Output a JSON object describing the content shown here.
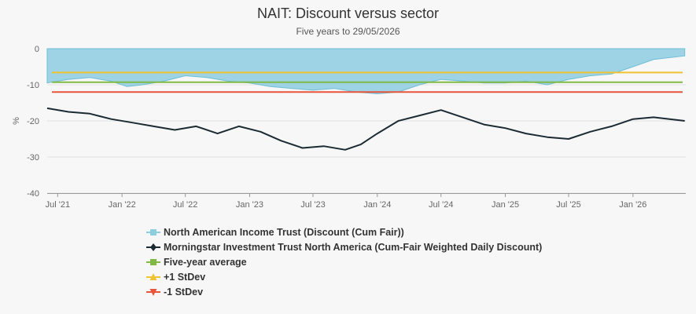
{
  "chart_data": {
    "type": "line",
    "title": "NAIT: Discount versus sector",
    "subtitle": "Five years to 29/05/2026",
    "ylabel": "%",
    "ylim": [
      -40,
      0
    ],
    "yticks": [
      0,
      -10,
      -20,
      -30,
      -40
    ],
    "xlim": [
      "2021-06-01",
      "2026-06-01"
    ],
    "xticks": [
      "Jul '21",
      "Jan '22",
      "Jul '22",
      "Jan '23",
      "Jul '23",
      "Jan '24",
      "Jul '24",
      "Jan '25",
      "Jul '25",
      "Jan '26"
    ],
    "xtick_dates": [
      "2021-07-01",
      "2022-01-01",
      "2022-07-01",
      "2023-01-01",
      "2023-07-01",
      "2024-01-01",
      "2024-07-01",
      "2025-01-01",
      "2025-07-01",
      "2026-01-01"
    ],
    "grid": true,
    "legend_position": "bottom",
    "series": [
      {
        "name": "North American Income Trust (Discount (Cum Fair))",
        "kind": "area",
        "color": "#8dcde0",
        "points": [
          [
            "2021-06-01",
            -9.5
          ],
          [
            "2021-08-01",
            -8.5
          ],
          [
            "2021-10-01",
            -8.0
          ],
          [
            "2021-12-01",
            -9.0
          ],
          [
            "2022-01-15",
            -10.5
          ],
          [
            "2022-03-01",
            -10.0
          ],
          [
            "2022-05-01",
            -9.0
          ],
          [
            "2022-07-01",
            -7.5
          ],
          [
            "2022-09-01",
            -8.0
          ],
          [
            "2022-11-01",
            -9.0
          ],
          [
            "2023-01-01",
            -9.5
          ],
          [
            "2023-03-01",
            -10.5
          ],
          [
            "2023-05-01",
            -11.0
          ],
          [
            "2023-07-01",
            -11.5
          ],
          [
            "2023-09-01",
            -11.0
          ],
          [
            "2023-11-01",
            -12.0
          ],
          [
            "2024-01-01",
            -12.5
          ],
          [
            "2024-03-01",
            -12.0
          ],
          [
            "2024-05-01",
            -10.0
          ],
          [
            "2024-07-01",
            -8.5
          ],
          [
            "2024-09-01",
            -9.0
          ],
          [
            "2024-11-01",
            -9.5
          ],
          [
            "2025-01-01",
            -9.5
          ],
          [
            "2025-03-01",
            -9.0
          ],
          [
            "2025-05-01",
            -10.0
          ],
          [
            "2025-07-01",
            -8.5
          ],
          [
            "2025-09-01",
            -7.5
          ],
          [
            "2025-11-01",
            -7.0
          ],
          [
            "2026-01-01",
            -5.0
          ],
          [
            "2026-03-01",
            -3.0
          ],
          [
            "2026-05-29",
            -2.0
          ]
        ]
      },
      {
        "name": "Morningstar Investment Trust North America (Cum-Fair Weighted Daily Discount)",
        "kind": "line",
        "color": "#1c2b33",
        "points": [
          [
            "2021-06-01",
            -16.5
          ],
          [
            "2021-08-01",
            -17.5
          ],
          [
            "2021-10-01",
            -18.0
          ],
          [
            "2021-12-01",
            -19.5
          ],
          [
            "2022-02-01",
            -20.5
          ],
          [
            "2022-04-01",
            -21.5
          ],
          [
            "2022-06-01",
            -22.5
          ],
          [
            "2022-08-01",
            -21.5
          ],
          [
            "2022-10-01",
            -23.5
          ],
          [
            "2022-12-01",
            -21.5
          ],
          [
            "2023-02-01",
            -23.0
          ],
          [
            "2023-04-01",
            -25.5
          ],
          [
            "2023-06-01",
            -27.5
          ],
          [
            "2023-08-01",
            -27.0
          ],
          [
            "2023-10-01",
            -28.0
          ],
          [
            "2023-11-15",
            -26.5
          ],
          [
            "2024-01-01",
            -23.5
          ],
          [
            "2024-03-01",
            -20.0
          ],
          [
            "2024-05-01",
            -18.5
          ],
          [
            "2024-07-01",
            -17.0
          ],
          [
            "2024-09-01",
            -19.0
          ],
          [
            "2024-11-01",
            -21.0
          ],
          [
            "2025-01-01",
            -22.0
          ],
          [
            "2025-03-01",
            -23.5
          ],
          [
            "2025-05-01",
            -24.5
          ],
          [
            "2025-07-01",
            -25.0
          ],
          [
            "2025-09-01",
            -23.0
          ],
          [
            "2025-11-01",
            -21.5
          ],
          [
            "2026-01-01",
            -19.5
          ],
          [
            "2026-03-01",
            -19.0
          ],
          [
            "2026-05-29",
            -20.0
          ]
        ]
      },
      {
        "name": "Five-year average",
        "kind": "hline",
        "color": "#82b944",
        "value": -9.3
      },
      {
        "name": "+1 StDev",
        "kind": "hline",
        "color": "#f1c232",
        "value": -6.6
      },
      {
        "name": "-1 StDev",
        "kind": "hline",
        "color": "#e8553c",
        "value": -12.0
      }
    ]
  },
  "legend": [
    {
      "label": "North American Income Trust (Discount (Cum Fair))",
      "color": "#8dcde0",
      "icon": "square-marker"
    },
    {
      "label": "Morningstar Investment Trust North America (Cum-Fair Weighted Daily Discount)",
      "color": "#1c2b33",
      "icon": "diamond-marker"
    },
    {
      "label": "Five-year average",
      "color": "#82b944",
      "icon": "square-marker"
    },
    {
      "label": "+1 StDev",
      "color": "#f1c232",
      "icon": "triangle-up-marker"
    },
    {
      "label": "-1 StDev",
      "color": "#e8553c",
      "icon": "triangle-down-marker"
    }
  ]
}
